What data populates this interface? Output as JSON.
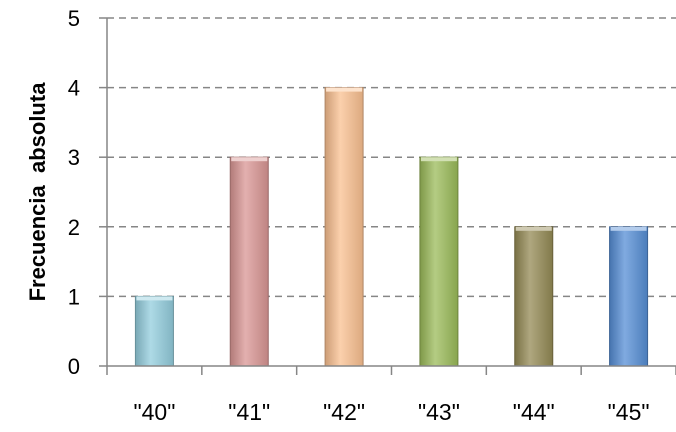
{
  "chart_data": {
    "type": "bar",
    "title": "",
    "xlabel": "",
    "ylabel": "Frecuencia  absoluta",
    "categories": [
      "\"40\"",
      "\"41\"",
      "\"42\"",
      "\"43\"",
      "\"44\"",
      "\"45\""
    ],
    "values": [
      1,
      3,
      4,
      3,
      2,
      2
    ],
    "ylim": [
      0,
      5
    ],
    "yticks": [
      0,
      1,
      2,
      3,
      4,
      5
    ],
    "grid": true,
    "grid_style": "dashed",
    "legend": "none",
    "colors": [
      "#93cddd",
      "#d99694",
      "#fac090",
      "#9bbb59",
      "#948a54",
      "#558ed5"
    ],
    "axis_color": "#868686",
    "grid_color": "#868686"
  }
}
